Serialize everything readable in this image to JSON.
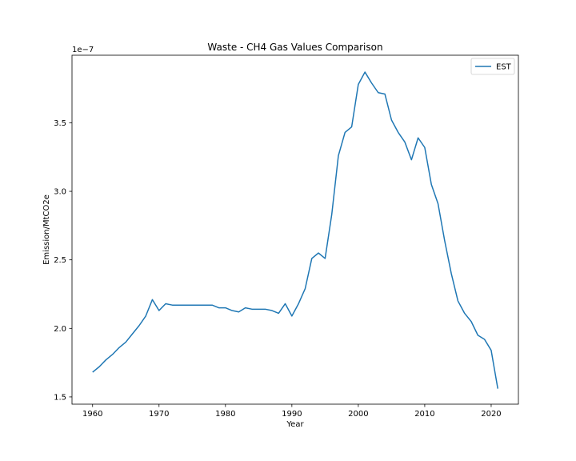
{
  "chart_data": {
    "type": "line",
    "title": "Waste - CH4 Gas Values Comparison",
    "xlabel": "Year",
    "ylabel": "Emission/MtCO2e",
    "y_offset_label": "1e−7",
    "xlim": [
      1956.9,
      2024.1
    ],
    "ylim": [
      1.447,
      3.993
    ],
    "x_ticks": [
      1960,
      1970,
      1980,
      1990,
      2000,
      2010,
      2020
    ],
    "y_ticks": [
      1.5,
      2.0,
      2.5,
      3.0,
      3.5
    ],
    "y_tick_labels": [
      "1.5",
      "2.0",
      "2.5",
      "3.0",
      "3.5"
    ],
    "grid": false,
    "legend_position": "top-right",
    "series": [
      {
        "name": "EST",
        "color": "#1f77b4",
        "x": [
          1960,
          1961,
          1962,
          1963,
          1964,
          1965,
          1966,
          1967,
          1968,
          1969,
          1970,
          1971,
          1972,
          1973,
          1974,
          1975,
          1976,
          1977,
          1978,
          1979,
          1980,
          1981,
          1982,
          1983,
          1984,
          1985,
          1986,
          1987,
          1988,
          1989,
          1990,
          1991,
          1992,
          1993,
          1994,
          1995,
          1996,
          1997,
          1998,
          1999,
          2000,
          2001,
          2002,
          2003,
          2004,
          2005,
          2006,
          2007,
          2008,
          2009,
          2010,
          2011,
          2012,
          2013,
          2014,
          2015,
          2016,
          2017,
          2018,
          2019,
          2020,
          2021
        ],
        "y": [
          1.68,
          1.72,
          1.77,
          1.81,
          1.86,
          1.9,
          1.96,
          2.02,
          2.09,
          2.21,
          2.13,
          2.18,
          2.17,
          2.17,
          2.17,
          2.17,
          2.17,
          2.17,
          2.17,
          2.15,
          2.15,
          2.13,
          2.12,
          2.15,
          2.14,
          2.14,
          2.14,
          2.13,
          2.11,
          2.18,
          2.09,
          2.18,
          2.29,
          2.51,
          2.55,
          2.51,
          2.83,
          3.26,
          3.43,
          3.47,
          3.78,
          3.87,
          3.79,
          3.72,
          3.71,
          3.52,
          3.43,
          3.36,
          3.23,
          3.39,
          3.32,
          3.05,
          2.91,
          2.64,
          2.4,
          2.2,
          2.11,
          2.05,
          1.95,
          1.92,
          1.84,
          1.56
        ]
      }
    ]
  }
}
